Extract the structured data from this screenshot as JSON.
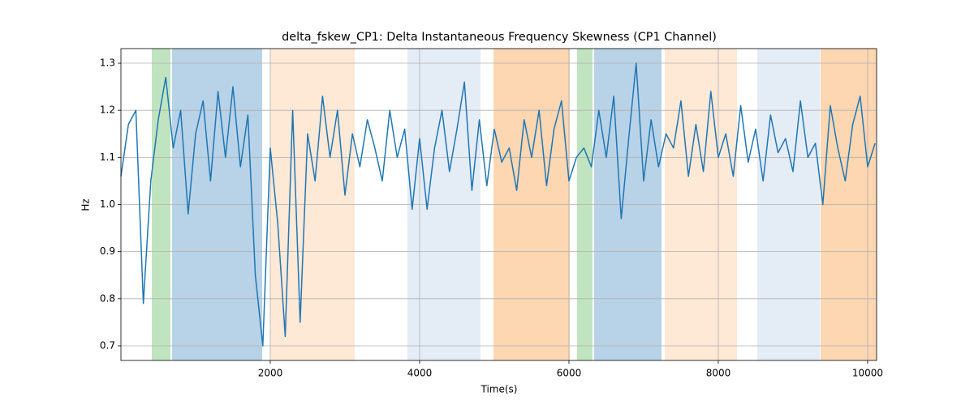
{
  "chart_data": {
    "type": "line",
    "title": "delta_fskew_CP1: Delta Instantaneous Frequency Skewness (CP1 Channel)",
    "xlabel": "Time(s)",
    "ylabel": "Hz",
    "xlim": [
      0,
      10120
    ],
    "ylim": [
      0.669,
      1.331
    ],
    "xticks": [
      2000,
      4000,
      6000,
      8000,
      10000
    ],
    "yticks": [
      0.7,
      0.8,
      0.9,
      {
        "value": 1,
        "label": "1.0"
      },
      1.1,
      1.2,
      1.3
    ],
    "grid": true,
    "spans": [
      {
        "start": 413,
        "end": 663,
        "color": "#c0e4bf"
      },
      {
        "start": 685,
        "end": 1891,
        "color": "#b8d2e7"
      },
      {
        "start": 2000,
        "end": 3130,
        "color": "#fee8d6"
      },
      {
        "start": 3837,
        "end": 4815,
        "color": "#e4ecf6"
      },
      {
        "start": 4989,
        "end": 6011,
        "color": "#fdd6b2"
      },
      {
        "start": 6109,
        "end": 6315,
        "color": "#c0e4bf"
      },
      {
        "start": 6337,
        "end": 7239,
        "color": "#b8d2e7"
      },
      {
        "start": 7283,
        "end": 8250,
        "color": "#fee8d6"
      },
      {
        "start": 8522,
        "end": 9359,
        "color": "#e4ecf6"
      },
      {
        "start": 9370,
        "end": 10120,
        "color": "#fdd6b2"
      }
    ],
    "x": [
      0,
      100,
      200,
      300,
      400,
      500,
      600,
      700,
      800,
      900,
      1000,
      1100,
      1200,
      1300,
      1400,
      1500,
      1600,
      1700,
      1800,
      1900,
      2000,
      2100,
      2200,
      2300,
      2400,
      2500,
      2600,
      2700,
      2800,
      2900,
      3000,
      3100,
      3200,
      3300,
      3400,
      3500,
      3600,
      3700,
      3800,
      3900,
      4000,
      4100,
      4200,
      4300,
      4400,
      4500,
      4600,
      4700,
      4800,
      4900,
      5000,
      5100,
      5200,
      5300,
      5400,
      5500,
      5600,
      5700,
      5800,
      5900,
      6000,
      6100,
      6200,
      6300,
      6400,
      6500,
      6600,
      6700,
      6800,
      6900,
      7000,
      7100,
      7200,
      7300,
      7400,
      7500,
      7600,
      7700,
      7800,
      7900,
      8000,
      8100,
      8200,
      8300,
      8400,
      8500,
      8600,
      8700,
      8800,
      8900,
      9000,
      9100,
      9200,
      9300,
      9400,
      9500,
      9600,
      9700,
      9800,
      9900,
      10000,
      10100
    ],
    "series": [
      {
        "color": "#1f77b4",
        "values": [
          1.06,
          1.17,
          1.2,
          0.79,
          1.05,
          1.18,
          1.27,
          1.12,
          1.2,
          0.98,
          1.15,
          1.22,
          1.05,
          1.24,
          1.1,
          1.25,
          1.08,
          1.19,
          0.85,
          0.7,
          1.12,
          0.96,
          0.72,
          1.2,
          0.75,
          1.15,
          1.05,
          1.23,
          1.1,
          1.2,
          1.02,
          1.15,
          1.08,
          1.18,
          1.12,
          1.05,
          1.2,
          1.1,
          1.16,
          0.99,
          1.14,
          0.99,
          1.12,
          1.2,
          1.07,
          1.16,
          1.26,
          1.03,
          1.18,
          1.04,
          1.16,
          1.09,
          1.12,
          1.03,
          1.18,
          1.1,
          1.2,
          1.04,
          1.16,
          1.22,
          1.05,
          1.1,
          1.12,
          1.08,
          1.2,
          1.1,
          1.23,
          0.97,
          1.14,
          1.3,
          1.05,
          1.18,
          1.08,
          1.15,
          1.12,
          1.22,
          1.06,
          1.17,
          1.07,
          1.24,
          1.1,
          1.15,
          1.06,
          1.21,
          1.09,
          1.16,
          1.05,
          1.19,
          1.11,
          1.14,
          1.07,
          1.22,
          1.1,
          1.13,
          1.0,
          1.21,
          1.12,
          1.05,
          1.17,
          1.23,
          1.08,
          1.13
        ]
      }
    ]
  }
}
